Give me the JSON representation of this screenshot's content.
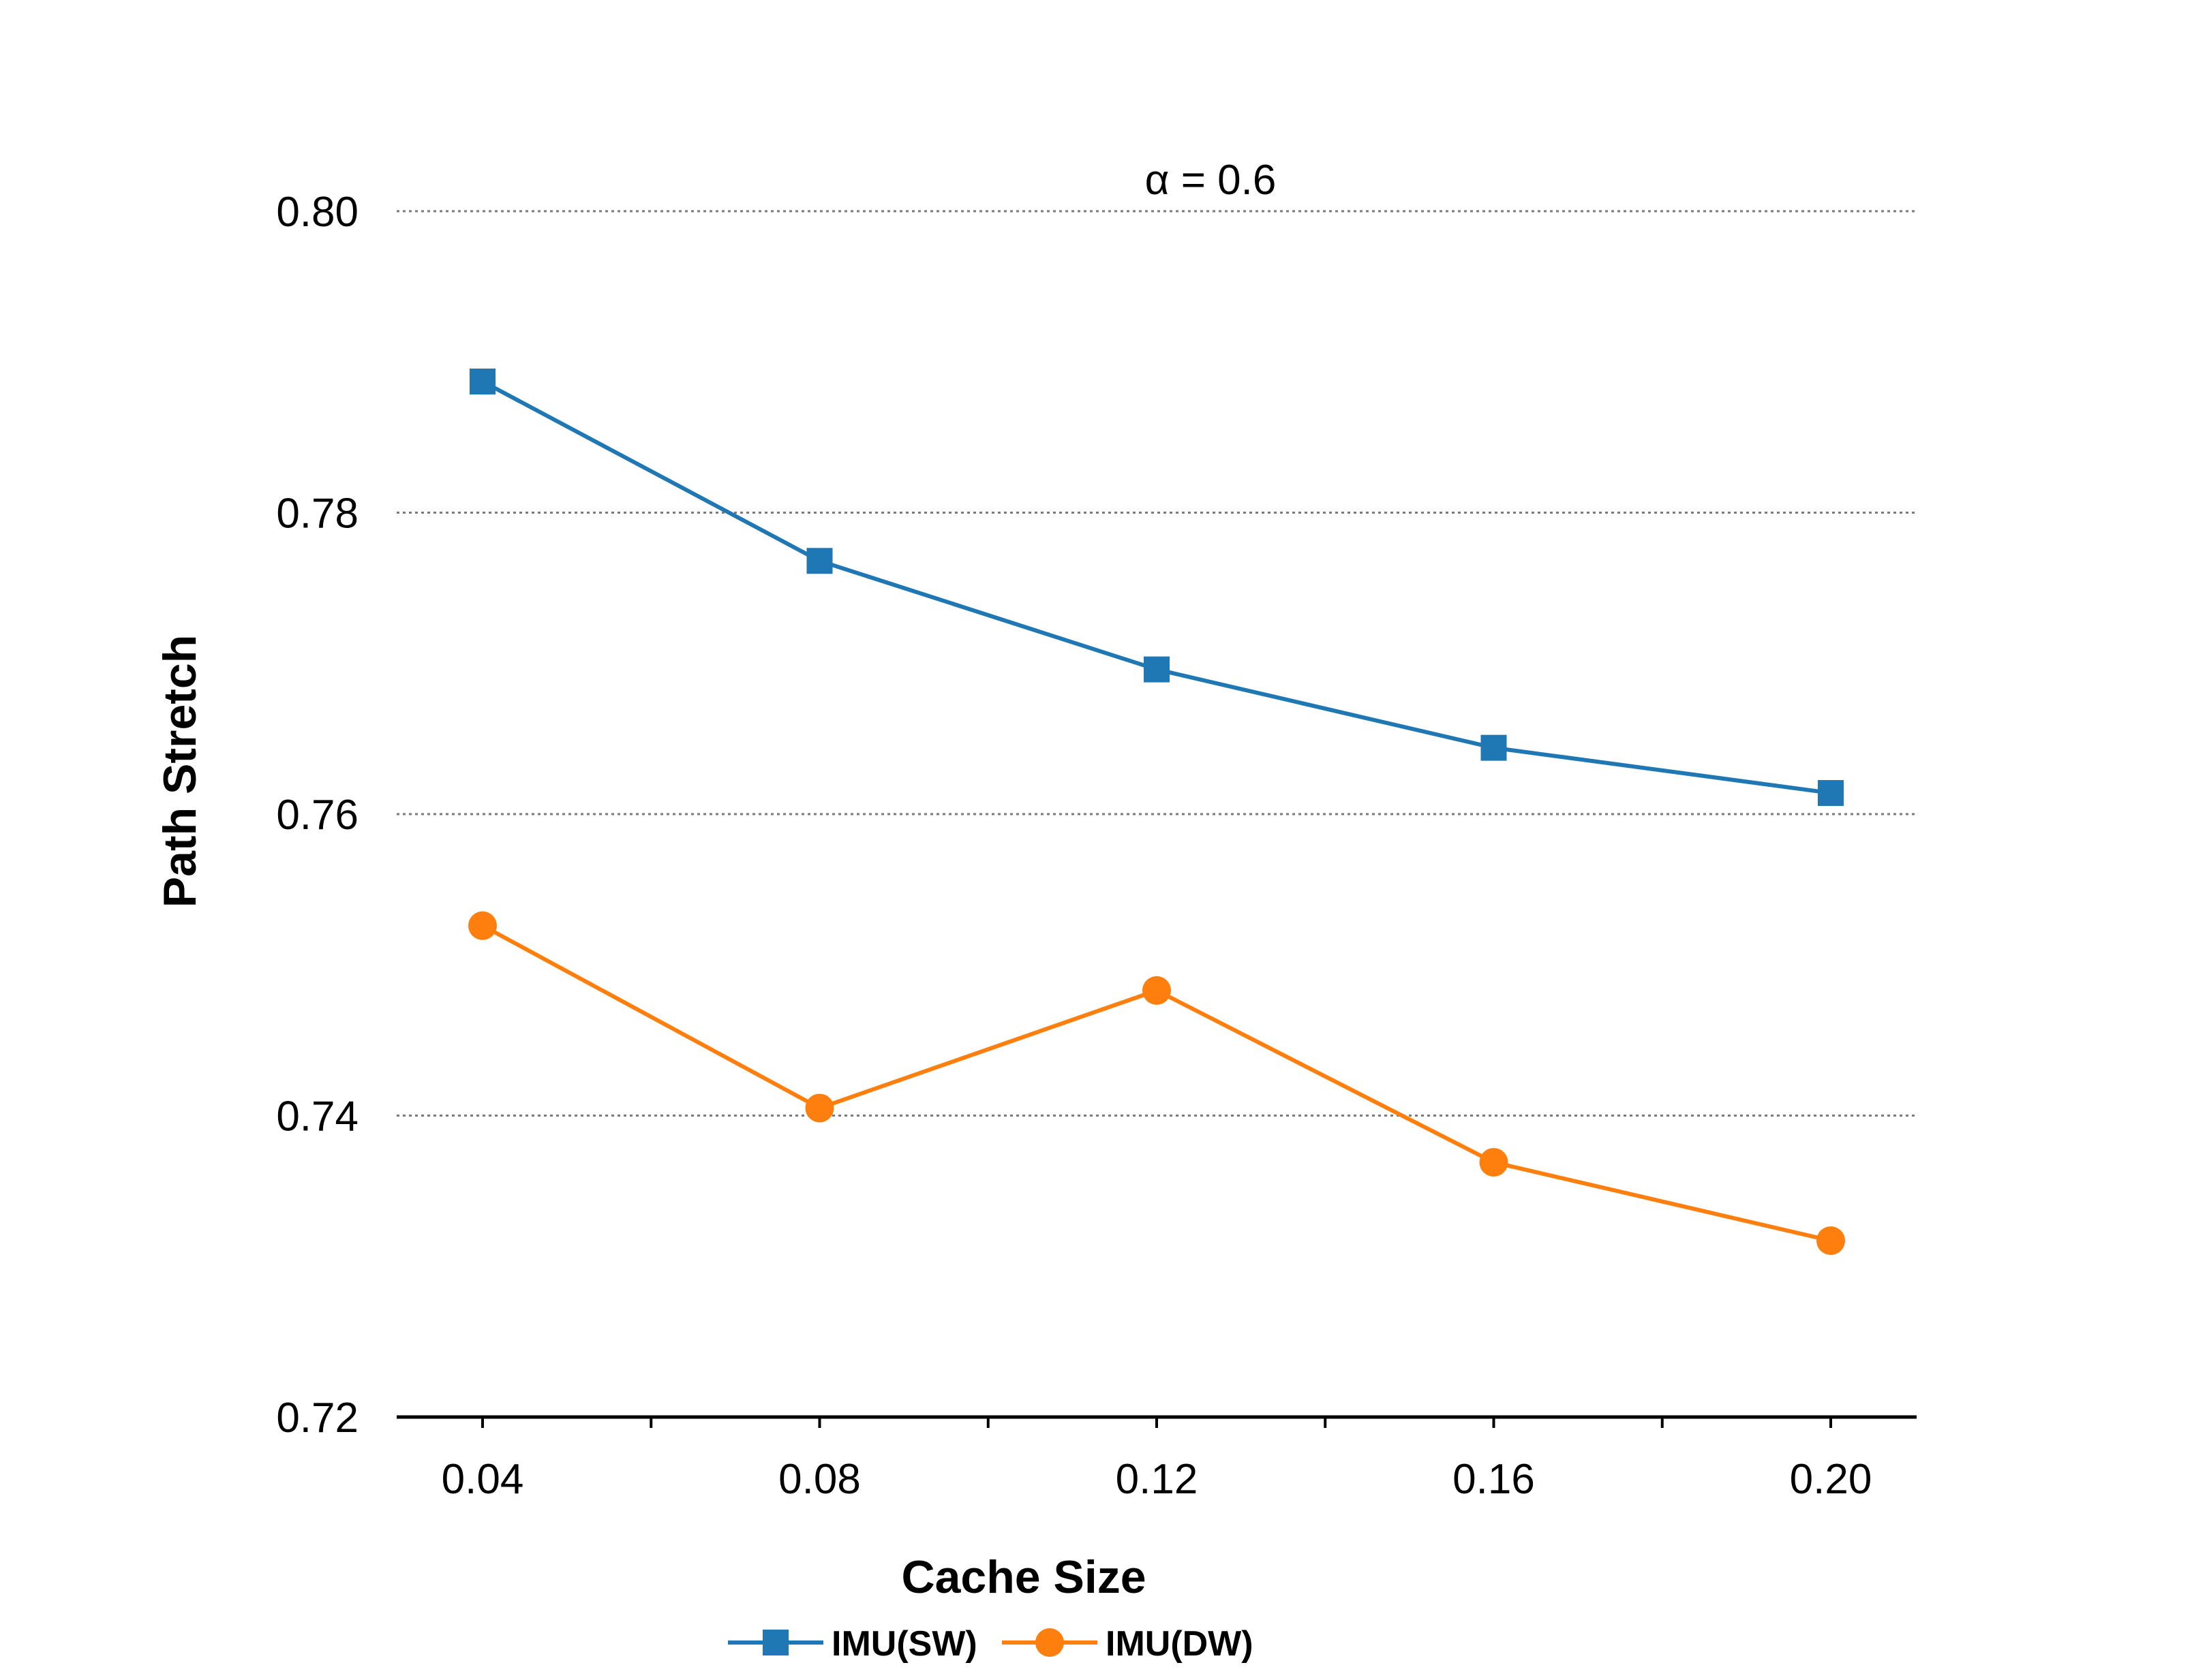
{
  "chart_data": {
    "type": "line",
    "title": "",
    "annotation": "α = 0.6",
    "xlabel": "Cache Size",
    "ylabel": "Path Stretch",
    "x": [
      0.04,
      0.08,
      0.12,
      0.16,
      0.2
    ],
    "x_tick_labels": [
      "0.04",
      "0.08",
      "0.12",
      "0.16",
      "0.20"
    ],
    "ylim": [
      0.72,
      0.8
    ],
    "y_ticks": [
      0.72,
      0.74,
      0.76,
      0.78,
      0.8
    ],
    "y_tick_labels": [
      "0.72",
      "0.74",
      "0.76",
      "0.78",
      "0.80"
    ],
    "grid": "horizontal-dotted",
    "legend_position": "bottom-center",
    "series": [
      {
        "name": "IMU(SW)",
        "marker": "square",
        "color": "#1f77b4",
        "values": [
          0.7887,
          0.7768,
          0.7696,
          0.7644,
          0.7614
        ]
      },
      {
        "name": "IMU(DW)",
        "marker": "circle",
        "color": "#ff7f0e",
        "values": [
          0.7526,
          0.7405,
          0.7483,
          0.7369,
          0.7317
        ]
      }
    ]
  }
}
